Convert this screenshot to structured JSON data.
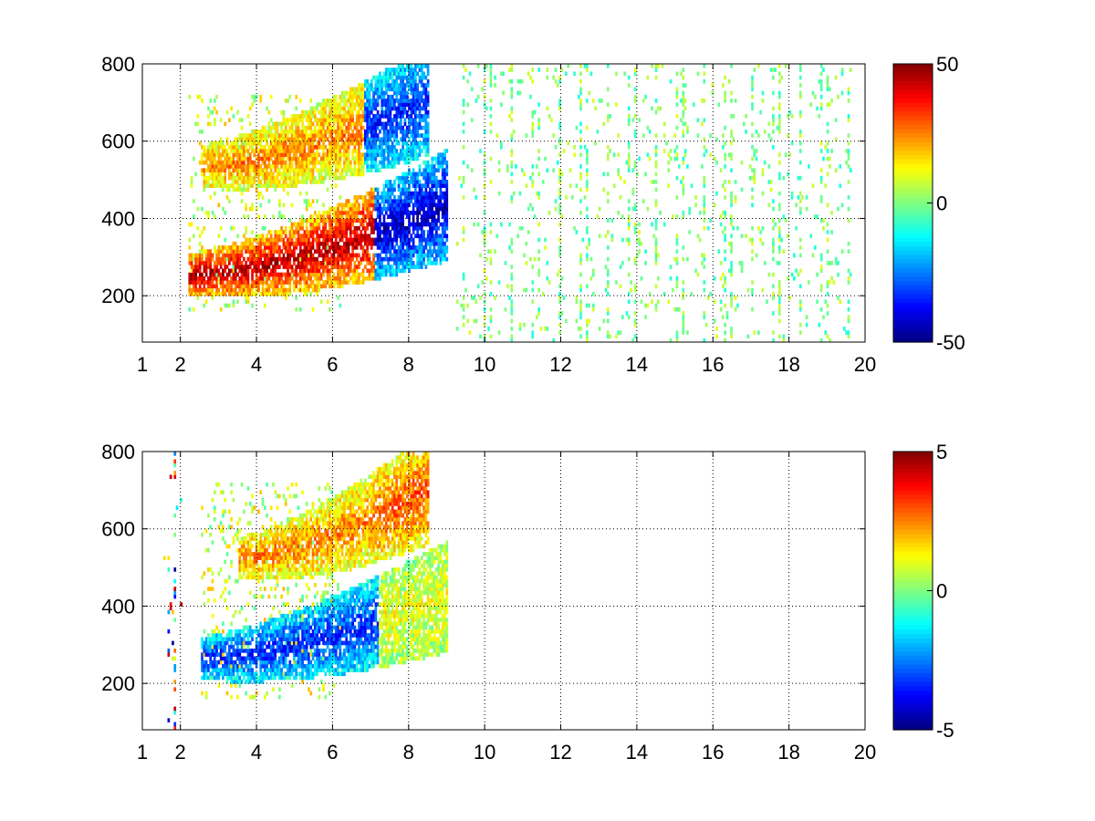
{
  "chart_data": [
    {
      "type": "heatmap",
      "title": "",
      "xlabel": "",
      "ylabel": "",
      "xlim": [
        1,
        20
      ],
      "ylim": [
        80,
        800
      ],
      "x_ticks": [
        1,
        2,
        4,
        6,
        8,
        10,
        12,
        14,
        16,
        18,
        20
      ],
      "y_ticks": [
        200,
        400,
        600,
        800
      ],
      "grid": true,
      "colormap": "jet",
      "colorbar": {
        "min": -50,
        "max": 50,
        "ticks": [
          50,
          0,
          -50
        ]
      },
      "bands": [
        {
          "name": "lower ridge",
          "x_range": [
            2.2,
            9.0
          ],
          "y_center_start": 250,
          "y_center_end": 430,
          "peak": 45,
          "trailing_edge": -45
        },
        {
          "name": "upper ridge",
          "x_range": [
            2.5,
            8.5
          ],
          "y_center_start": 530,
          "y_center_end": 700,
          "peak": 25,
          "trailing_edge": -35
        }
      ],
      "sparse_noise_region": {
        "x_range": [
          9.2,
          19.6
        ],
        "value_range": [
          -10,
          10
        ]
      }
    },
    {
      "type": "heatmap",
      "title": "",
      "xlabel": "",
      "ylabel": "",
      "xlim": [
        1,
        20
      ],
      "ylim": [
        80,
        800
      ],
      "x_ticks": [
        1,
        2,
        4,
        6,
        8,
        10,
        12,
        14,
        16,
        18,
        20
      ],
      "y_ticks": [
        200,
        400,
        600,
        800
      ],
      "grid": true,
      "colormap": "jet",
      "colorbar": {
        "min": -5,
        "max": 5,
        "ticks": [
          5,
          0,
          -5
        ]
      },
      "bands": [
        {
          "name": "lower ridge",
          "x_range": [
            2.5,
            9.0
          ],
          "y_center_start": 260,
          "y_center_end": 420,
          "peak": -3.5,
          "trailing_edge": 1
        },
        {
          "name": "upper ridge",
          "x_range": [
            3.5,
            8.5
          ],
          "y_center_start": 520,
          "y_center_end": 700,
          "peak": 2.5,
          "trailing_edge": 3
        }
      ],
      "sparse_noise_region": {
        "x_range": [
          1.5,
          2.0
        ],
        "value_range": [
          -5,
          5
        ]
      }
    }
  ]
}
